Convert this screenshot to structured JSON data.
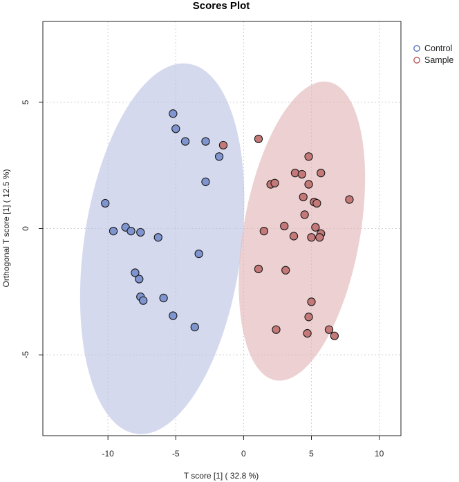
{
  "chart_data": {
    "type": "scatter",
    "title": "Scores Plot",
    "xlabel": "T score [1] ( 32.8 %)",
    "ylabel": "Orthogonal T score [1] ( 12.5 %)",
    "xlim": [
      -14.8,
      11.6
    ],
    "ylim": [
      -8.2,
      8.2
    ],
    "xticks": [
      -10,
      -5,
      0,
      5,
      10
    ],
    "yticks": [
      -5,
      0,
      5
    ],
    "grid": true,
    "legend": "top-right",
    "series": [
      {
        "name": "Control",
        "color": "#4a6bb5",
        "fill": "#7f95d0",
        "ellipse_fill": "#b9c1e4",
        "x": [
          -10.2,
          -9.6,
          -8.7,
          -8.3,
          -7.6,
          -6.3,
          -5.2,
          -5.0,
          -4.3,
          -2.8,
          -1.8,
          -2.8,
          -8.0,
          -7.7,
          -7.6,
          -7.4,
          -5.9,
          -5.2,
          -3.3,
          -3.6
        ],
        "y": [
          1.0,
          -0.1,
          0.05,
          -0.1,
          -0.15,
          -0.35,
          4.55,
          3.95,
          3.45,
          3.45,
          2.85,
          1.85,
          -1.75,
          -2.0,
          -2.7,
          -2.85,
          -2.75,
          -3.45,
          -1.0,
          -3.9
        ]
      },
      {
        "name": "Sample",
        "color": "#b24f4f",
        "fill": "#c47878",
        "ellipse_fill": "#e2b4b6",
        "x": [
          -1.5,
          1.1,
          4.8,
          3.8,
          4.3,
          5.7,
          2.0,
          2.3,
          4.8,
          4.4,
          5.2,
          5.4,
          7.8,
          4.5,
          1.5,
          3.0,
          5.3,
          5.7,
          3.7,
          5.6,
          5.0,
          1.1,
          3.1,
          5.0,
          4.8,
          2.4,
          4.7,
          6.3,
          6.7
        ],
        "y": [
          3.3,
          3.55,
          2.85,
          2.2,
          2.15,
          2.2,
          1.75,
          1.8,
          1.75,
          1.25,
          1.05,
          1.0,
          1.15,
          0.55,
          -0.1,
          0.1,
          0.05,
          -0.2,
          -0.3,
          -0.35,
          -0.35,
          -1.6,
          -1.65,
          -2.9,
          -3.5,
          -4.0,
          -4.15,
          -4.0,
          -4.25
        ]
      }
    ],
    "ellipses": [
      {
        "series": "Control",
        "center": [
          -6.0,
          -0.8
        ],
        "semi_axes": [
          5.8,
          7.4
        ],
        "rotation_deg": 8
      },
      {
        "series": "Sample",
        "center": [
          4.3,
          -0.1
        ],
        "semi_axes": [
          4.3,
          6.0
        ],
        "rotation_deg": 10
      }
    ]
  }
}
